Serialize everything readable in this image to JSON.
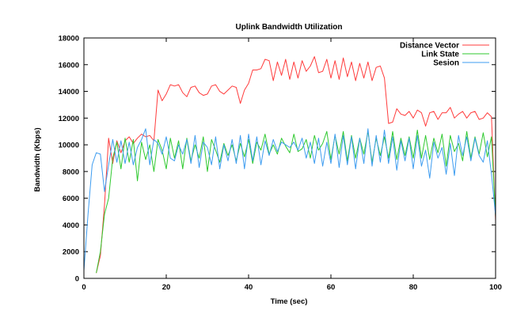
{
  "chart_data": {
    "type": "line",
    "title": "Uplink Bandwidth Utilization",
    "xlabel": "Time (sec)",
    "ylabel": "Bandwidth (Kbps)",
    "xlim": [
      0,
      100
    ],
    "ylim": [
      0,
      18000
    ],
    "xticks": [
      0,
      20,
      40,
      60,
      80,
      100
    ],
    "yticks": [
      0,
      2000,
      4000,
      6000,
      8000,
      10000,
      12000,
      14000,
      16000,
      18000
    ],
    "grid": false,
    "legend": "top-right",
    "series": [
      {
        "name": "Distance Vector",
        "color": "#ff3b3b",
        "points": [
          [
            3,
            400
          ],
          [
            4,
            1700
          ],
          [
            5,
            5500
          ],
          [
            6,
            10500
          ],
          [
            7,
            8600
          ],
          [
            8,
            10300
          ],
          [
            9,
            9400
          ],
          [
            10,
            10300
          ],
          [
            11,
            10600
          ],
          [
            12,
            10100
          ],
          [
            13,
            10500
          ],
          [
            14,
            10800
          ],
          [
            15,
            10600
          ],
          [
            16,
            10700
          ],
          [
            17,
            10300
          ],
          [
            18,
            14100
          ],
          [
            19,
            13300
          ],
          [
            20,
            13800
          ],
          [
            21,
            14500
          ],
          [
            22,
            14400
          ],
          [
            23,
            14500
          ],
          [
            24,
            13900
          ],
          [
            25,
            13600
          ],
          [
            26,
            14300
          ],
          [
            27,
            14400
          ],
          [
            28,
            13900
          ],
          [
            29,
            13700
          ],
          [
            30,
            13800
          ],
          [
            31,
            14400
          ],
          [
            32,
            14500
          ],
          [
            33,
            14000
          ],
          [
            34,
            13800
          ],
          [
            35,
            14100
          ],
          [
            36,
            14400
          ],
          [
            37,
            14300
          ],
          [
            38,
            13100
          ],
          [
            39,
            14100
          ],
          [
            40,
            14600
          ],
          [
            41,
            15600
          ],
          [
            42,
            15600
          ],
          [
            43,
            15700
          ],
          [
            44,
            16400
          ],
          [
            45,
            16300
          ],
          [
            46,
            14800
          ],
          [
            47,
            16200
          ],
          [
            48,
            15200
          ],
          [
            49,
            16400
          ],
          [
            50,
            14900
          ],
          [
            51,
            16200
          ],
          [
            52,
            15000
          ],
          [
            53,
            16300
          ],
          [
            54,
            15500
          ],
          [
            55,
            15900
          ],
          [
            56,
            16600
          ],
          [
            57,
            15400
          ],
          [
            58,
            15500
          ],
          [
            59,
            16400
          ],
          [
            60,
            15000
          ],
          [
            61,
            16300
          ],
          [
            62,
            14900
          ],
          [
            63,
            16500
          ],
          [
            64,
            15100
          ],
          [
            65,
            16200
          ],
          [
            66,
            14800
          ],
          [
            67,
            16100
          ],
          [
            68,
            15000
          ],
          [
            69,
            16200
          ],
          [
            70,
            14800
          ],
          [
            71,
            15800
          ],
          [
            72,
            15900
          ],
          [
            73,
            15000
          ],
          [
            74,
            11600
          ],
          [
            75,
            11700
          ],
          [
            76,
            12700
          ],
          [
            77,
            12300
          ],
          [
            78,
            12200
          ],
          [
            79,
            12500
          ],
          [
            80,
            12000
          ],
          [
            81,
            12600
          ],
          [
            82,
            12400
          ],
          [
            83,
            11400
          ],
          [
            84,
            12400
          ],
          [
            85,
            12500
          ],
          [
            86,
            11900
          ],
          [
            87,
            12400
          ],
          [
            88,
            12400
          ],
          [
            89,
            12800
          ],
          [
            90,
            12000
          ],
          [
            91,
            12300
          ],
          [
            92,
            12500
          ],
          [
            93,
            12000
          ],
          [
            94,
            12400
          ],
          [
            95,
            12500
          ],
          [
            96,
            11900
          ],
          [
            97,
            12000
          ],
          [
            98,
            12400
          ],
          [
            99,
            12100
          ],
          [
            100,
            4300
          ]
        ]
      },
      {
        "name": "Link State",
        "color": "#2fc92f",
        "points": [
          [
            3,
            400
          ],
          [
            4,
            2000
          ],
          [
            5,
            4800
          ],
          [
            6,
            6000
          ],
          [
            7,
            9000
          ],
          [
            8,
            10200
          ],
          [
            9,
            8200
          ],
          [
            10,
            10500
          ],
          [
            11,
            8700
          ],
          [
            12,
            10400
          ],
          [
            13,
            7300
          ],
          [
            14,
            10200
          ],
          [
            15,
            8900
          ],
          [
            16,
            10000
          ],
          [
            17,
            8000
          ],
          [
            18,
            10400
          ],
          [
            19,
            9600
          ],
          [
            20,
            8200
          ],
          [
            21,
            10500
          ],
          [
            22,
            9000
          ],
          [
            23,
            10300
          ],
          [
            24,
            8200
          ],
          [
            25,
            10500
          ],
          [
            26,
            8800
          ],
          [
            27,
            10000
          ],
          [
            28,
            9000
          ],
          [
            29,
            10600
          ],
          [
            30,
            8000
          ],
          [
            31,
            10400
          ],
          [
            32,
            9600
          ],
          [
            33,
            8700
          ],
          [
            34,
            10100
          ],
          [
            35,
            9200
          ],
          [
            36,
            10000
          ],
          [
            37,
            8800
          ],
          [
            38,
            10100
          ],
          [
            39,
            9100
          ],
          [
            40,
            10400
          ],
          [
            41,
            8600
          ],
          [
            42,
            10200
          ],
          [
            43,
            9600
          ],
          [
            44,
            10800
          ],
          [
            45,
            9300
          ],
          [
            46,
            10000
          ],
          [
            47,
            9300
          ],
          [
            48,
            10500
          ],
          [
            49,
            9900
          ],
          [
            50,
            9400
          ],
          [
            51,
            10800
          ],
          [
            52,
            9500
          ],
          [
            53,
            9700
          ],
          [
            54,
            10400
          ],
          [
            55,
            9000
          ],
          [
            56,
            10700
          ],
          [
            57,
            9600
          ],
          [
            58,
            10100
          ],
          [
            59,
            11000
          ],
          [
            60,
            8900
          ],
          [
            61,
            10700
          ],
          [
            62,
            9300
          ],
          [
            63,
            11000
          ],
          [
            64,
            8800
          ],
          [
            65,
            10700
          ],
          [
            66,
            9000
          ],
          [
            67,
            10500
          ],
          [
            68,
            9300
          ],
          [
            69,
            11000
          ],
          [
            70,
            8700
          ],
          [
            71,
            10500
          ],
          [
            72,
            9200
          ],
          [
            73,
            10600
          ],
          [
            74,
            9000
          ],
          [
            75,
            11000
          ],
          [
            76,
            8900
          ],
          [
            77,
            10500
          ],
          [
            78,
            9200
          ],
          [
            79,
            10600
          ],
          [
            80,
            9000
          ],
          [
            81,
            11100
          ],
          [
            82,
            9000
          ],
          [
            83,
            10700
          ],
          [
            84,
            8900
          ],
          [
            85,
            10500
          ],
          [
            86,
            9400
          ],
          [
            87,
            10800
          ],
          [
            88,
            8400
          ],
          [
            89,
            10700
          ],
          [
            90,
            9500
          ],
          [
            91,
            10100
          ],
          [
            92,
            8800
          ],
          [
            93,
            11000
          ],
          [
            94,
            9000
          ],
          [
            95,
            10600
          ],
          [
            96,
            9300
          ],
          [
            97,
            10900
          ],
          [
            98,
            9100
          ],
          [
            99,
            10600
          ],
          [
            100,
            4600
          ]
        ]
      },
      {
        "name": "Sesion",
        "color": "#3d9cf0",
        "points": [
          [
            0,
            600
          ],
          [
            1,
            4800
          ],
          [
            2,
            8500
          ],
          [
            3,
            9400
          ],
          [
            4,
            9300
          ],
          [
            5,
            6500
          ],
          [
            6,
            8500
          ],
          [
            7,
            10400
          ],
          [
            8,
            8700
          ],
          [
            9,
            10300
          ],
          [
            10,
            8600
          ],
          [
            11,
            10200
          ],
          [
            12,
            8500
          ],
          [
            13,
            9800
          ],
          [
            14,
            10400
          ],
          [
            15,
            11200
          ],
          [
            16,
            8500
          ],
          [
            17,
            10400
          ],
          [
            18,
            10100
          ],
          [
            19,
            9300
          ],
          [
            20,
            10600
          ],
          [
            21,
            9000
          ],
          [
            22,
            8800
          ],
          [
            23,
            10000
          ],
          [
            24,
            9300
          ],
          [
            25,
            10400
          ],
          [
            26,
            8600
          ],
          [
            27,
            10700
          ],
          [
            28,
            8300
          ],
          [
            29,
            10200
          ],
          [
            30,
            9800
          ],
          [
            31,
            8500
          ],
          [
            32,
            10600
          ],
          [
            33,
            8200
          ],
          [
            34,
            10000
          ],
          [
            35,
            8800
          ],
          [
            36,
            10400
          ],
          [
            37,
            8600
          ],
          [
            38,
            10700
          ],
          [
            39,
            8200
          ],
          [
            40,
            10800
          ],
          [
            41,
            8800
          ],
          [
            42,
            10600
          ],
          [
            43,
            8500
          ],
          [
            44,
            10300
          ],
          [
            45,
            9200
          ],
          [
            46,
            10400
          ],
          [
            47,
            9500
          ],
          [
            48,
            10200
          ],
          [
            49,
            10000
          ],
          [
            50,
            9800
          ],
          [
            51,
            10200
          ],
          [
            52,
            9600
          ],
          [
            53,
            10500
          ],
          [
            54,
            9000
          ],
          [
            55,
            10200
          ],
          [
            56,
            8600
          ],
          [
            57,
            10500
          ],
          [
            58,
            8400
          ],
          [
            59,
            10200
          ],
          [
            60,
            8600
          ],
          [
            61,
            10800
          ],
          [
            62,
            8300
          ],
          [
            63,
            10700
          ],
          [
            64,
            8500
          ],
          [
            65,
            10600
          ],
          [
            66,
            8200
          ],
          [
            67,
            10500
          ],
          [
            68,
            8600
          ],
          [
            69,
            11200
          ],
          [
            70,
            8400
          ],
          [
            71,
            10700
          ],
          [
            72,
            8700
          ],
          [
            73,
            11100
          ],
          [
            74,
            8600
          ],
          [
            75,
            10600
          ],
          [
            76,
            8100
          ],
          [
            77,
            10300
          ],
          [
            78,
            8800
          ],
          [
            79,
            10500
          ],
          [
            80,
            8200
          ],
          [
            81,
            10700
          ],
          [
            82,
            8400
          ],
          [
            83,
            9600
          ],
          [
            84,
            7500
          ],
          [
            85,
            10200
          ],
          [
            86,
            9000
          ],
          [
            87,
            9800
          ],
          [
            88,
            7800
          ],
          [
            89,
            10100
          ],
          [
            90,
            7700
          ],
          [
            91,
            10700
          ],
          [
            92,
            9200
          ],
          [
            93,
            10600
          ],
          [
            94,
            8800
          ],
          [
            95,
            10500
          ],
          [
            96,
            9200
          ],
          [
            97,
            8700
          ],
          [
            98,
            10300
          ],
          [
            99,
            7800
          ],
          [
            100,
            4700
          ]
        ]
      }
    ]
  }
}
